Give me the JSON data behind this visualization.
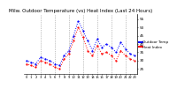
{
  "title": "Milw. Outdoor Temperature (vs) Heat Index (Last 24 Hours)",
  "legend_labels": [
    "Outdoor Temp",
    "Heat Index"
  ],
  "x_values": [
    0,
    1,
    2,
    3,
    4,
    5,
    6,
    7,
    8,
    9,
    10,
    11,
    12,
    13,
    14,
    15,
    16,
    17,
    18,
    19,
    20,
    21,
    22,
    23
  ],
  "temp_values": [
    30,
    29,
    28,
    32,
    31,
    30,
    28,
    27,
    33,
    36,
    45,
    54,
    48,
    42,
    36,
    43,
    38,
    40,
    38,
    35,
    41,
    37,
    34,
    33
  ],
  "heat_values": [
    28,
    27,
    26,
    30,
    29,
    28,
    26,
    25,
    31,
    34,
    42,
    50,
    44,
    36,
    33,
    39,
    34,
    35,
    33,
    30,
    36,
    33,
    31,
    30
  ],
  "ylim_min": 22,
  "ylim_max": 58,
  "ytick_values": [
    25,
    30,
    35,
    40,
    45,
    50,
    55
  ],
  "bg_color": "#ffffff",
  "grid_color": "#888888",
  "line_color_blue": "#0000ff",
  "line_color_red": "#ff0000",
  "title_fontsize": 4.0,
  "tick_fontsize": 3.0,
  "legend_fontsize": 3.0,
  "grid_positions": [
    3,
    6,
    9,
    12,
    15,
    18,
    21
  ]
}
